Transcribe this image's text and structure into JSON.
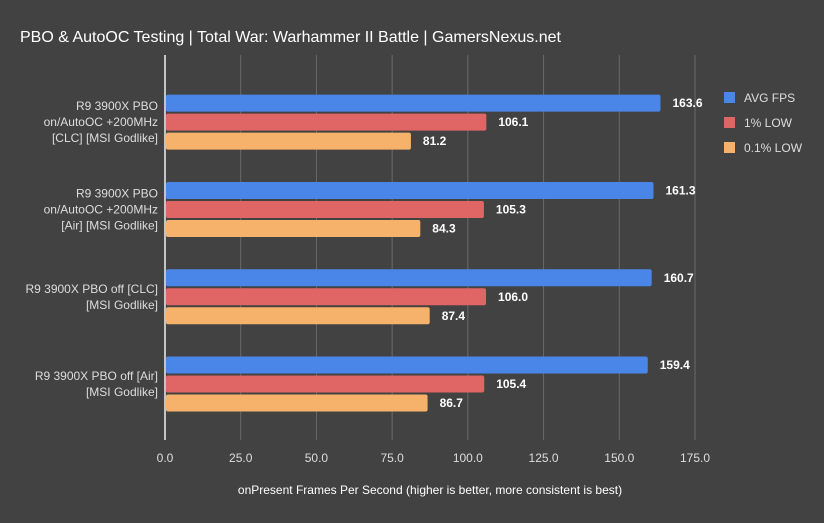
{
  "chart_data": {
    "type": "bar",
    "orientation": "horizontal",
    "title": "PBO & AutoOC Testing | Total War: Warhammer II Battle | GamersNexus.net",
    "xlabel": "onPresent Frames Per Second (higher is better, more consistent is best)",
    "ylabel": "",
    "xlim": [
      0,
      175
    ],
    "xticks": [
      "0.0",
      "25.0",
      "50.0",
      "75.0",
      "100.0",
      "125.0",
      "150.0",
      "175.0"
    ],
    "grid": true,
    "legend_position": "top-right",
    "categories": [
      [
        "R9 3900X PBO",
        "on/AutoOC +200MHz",
        "[CLC] [MSI Godlike]"
      ],
      [
        "R9 3900X PBO",
        "on/AutoOC +200MHz",
        "[Air] [MSI Godlike]"
      ],
      [
        "R9 3900X PBO off [CLC]",
        "[MSI Godlike]"
      ],
      [
        "R9 3900X PBO off [Air]",
        "[MSI Godlike]"
      ]
    ],
    "series": [
      {
        "name": "AVG FPS",
        "color": "#4a86e8",
        "values": [
          163.6,
          161.3,
          160.7,
          159.4
        ]
      },
      {
        "name": "1% LOW",
        "color": "#e06666",
        "values": [
          106.1,
          105.3,
          106.0,
          105.4
        ]
      },
      {
        "name": "0.1% LOW",
        "color": "#f6b26b",
        "values": [
          81.2,
          84.3,
          87.4,
          86.7
        ]
      }
    ]
  }
}
